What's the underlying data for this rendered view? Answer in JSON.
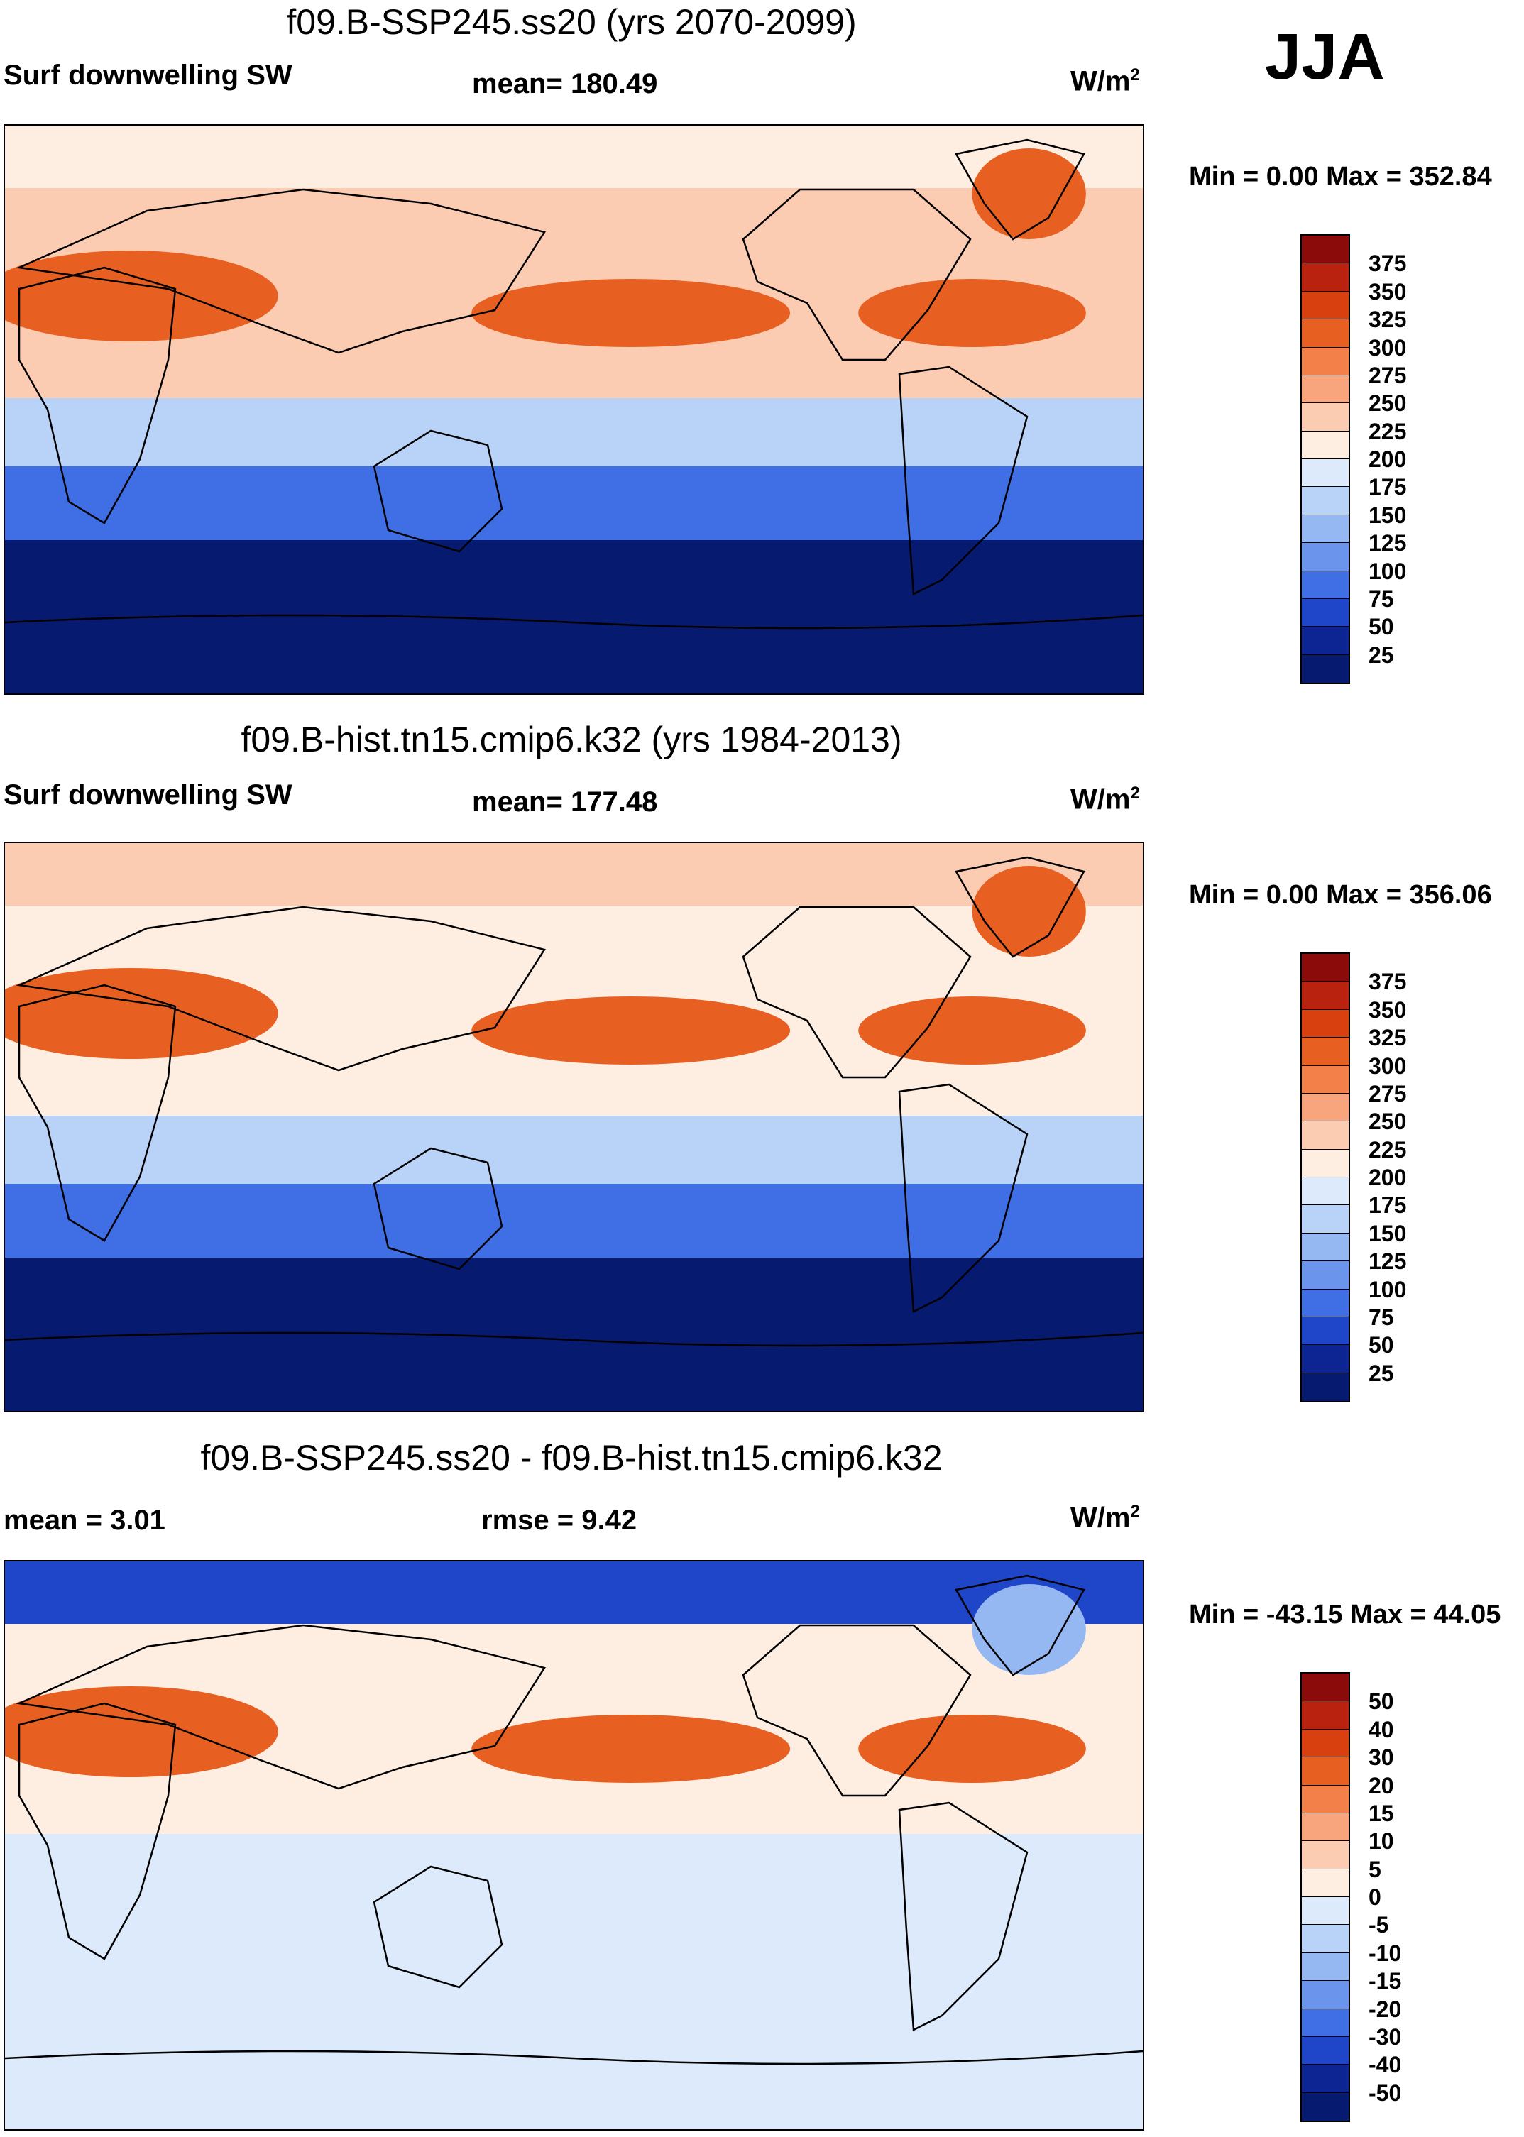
{
  "season": "JJA",
  "panels": [
    {
      "title": "f09.B-SSP245.ss20 (yrs 2070-2099)",
      "left_label": "Surf downwelling SW",
      "center_label": "mean= 180.49",
      "units_base": "W/m",
      "units_exp": "2",
      "min_max": "Min =    0.00 Max = 352.84",
      "colorbar_labels": [
        "375",
        "350",
        "325",
        "300",
        "275",
        "250",
        "225",
        "200",
        "175",
        "150",
        "125",
        "100",
        "75",
        "50",
        "25"
      ],
      "colors": [
        "#8b0a0a",
        "#b8220f",
        "#d8400f",
        "#e85f22",
        "#f28048",
        "#f8a47c",
        "#fbccb2",
        "#fdeee1",
        "#dceafb",
        "#b9d3f8",
        "#95b8f2",
        "#6b95ec",
        "#3f6ee5",
        "#1f45c8",
        "#0c2593",
        "#061a70"
      ]
    },
    {
      "title": "f09.B-hist.tn15.cmip6.k32 (yrs 1984-2013)",
      "left_label": "Surf downwelling SW",
      "center_label": "mean= 177.48",
      "units_base": "W/m",
      "units_exp": "2",
      "min_max": "Min =    0.00 Max = 356.06",
      "colorbar_labels": [
        "375",
        "350",
        "325",
        "300",
        "275",
        "250",
        "225",
        "200",
        "175",
        "150",
        "125",
        "100",
        "75",
        "50",
        "25"
      ],
      "colors": [
        "#8b0a0a",
        "#b8220f",
        "#d8400f",
        "#e85f22",
        "#f28048",
        "#f8a47c",
        "#fbccb2",
        "#fdeee1",
        "#dceafb",
        "#b9d3f8",
        "#95b8f2",
        "#6b95ec",
        "#3f6ee5",
        "#1f45c8",
        "#0c2593",
        "#061a70"
      ]
    },
    {
      "title": "f09.B-SSP245.ss20 - f09.B-hist.tn15.cmip6.k32",
      "left_label": "mean =    3.01",
      "center_label": "rmse =    9.42",
      "units_base": "W/m",
      "units_exp": "2",
      "min_max": "Min = -43.15 Max =  44.05",
      "colorbar_labels": [
        "50",
        "40",
        "30",
        "20",
        "15",
        "10",
        "5",
        "0",
        "-5",
        "-10",
        "-15",
        "-20",
        "-30",
        "-40",
        "-50"
      ],
      "colors": [
        "#8b0a0a",
        "#b8220f",
        "#d8400f",
        "#e85f22",
        "#f28048",
        "#f8a47c",
        "#fbccb2",
        "#fdeee1",
        "#dceafb",
        "#b9d3f8",
        "#95b8f2",
        "#6b95ec",
        "#3f6ee5",
        "#1f45c8",
        "#0c2593",
        "#061a70"
      ]
    }
  ],
  "map_fill": {
    "panel1": {
      "north_band": "#fdeee1",
      "tropics": "#fbccb2",
      "subtropic_high": "#e85f22",
      "mid_south": "#b9d3f8",
      "south_band": "#3f6ee5",
      "polar_south": "#061a70",
      "continents": "#f8a47c",
      "greenland": "#e85f22"
    },
    "panel2": {
      "north_band": "#fbccb2",
      "tropics": "#fdeee1",
      "subtropic_high": "#e85f22",
      "mid_south": "#b9d3f8",
      "south_band": "#3f6ee5",
      "polar_south": "#061a70",
      "continents": "#f8a47c",
      "greenland": "#e85f22"
    },
    "panel3": {
      "north_band": "#1f45c8",
      "tropics": "#fdeee1",
      "subtropic_high": "#e85f22",
      "mid_south": "#dceafb",
      "south_band": "#dceafb",
      "polar_south": "#dceafb",
      "continents": "#f8a47c",
      "greenland": "#95b8f2"
    }
  }
}
